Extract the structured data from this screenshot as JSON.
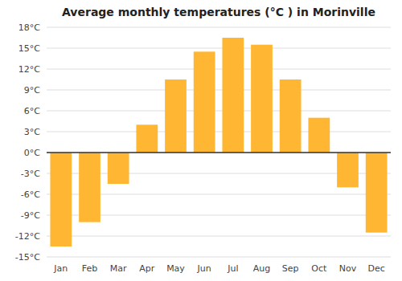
{
  "chart_data": {
    "type": "bar",
    "title": "Average monthly temperatures (°C ) in Morinville",
    "categories": [
      "Jan",
      "Feb",
      "Mar",
      "Apr",
      "May",
      "Jun",
      "Jul",
      "Aug",
      "Sep",
      "Oct",
      "Nov",
      "Dec"
    ],
    "values": [
      -13.5,
      -10.0,
      -4.5,
      4.0,
      10.5,
      14.5,
      16.5,
      15.5,
      10.5,
      5.0,
      -5.0,
      -11.5
    ],
    "color": "#FFB733",
    "ylim": [
      -15,
      18
    ],
    "yticks": [
      {
        "value": -15,
        "label": "-15°C"
      },
      {
        "value": -12,
        "label": "-12°C"
      },
      {
        "value": -9,
        "label": "-9°C"
      },
      {
        "value": -6,
        "label": "-6°C"
      },
      {
        "value": -3,
        "label": "-3°C"
      },
      {
        "value": 0,
        "label": "0°C"
      },
      {
        "value": 3,
        "label": "3°C"
      },
      {
        "value": 6,
        "label": "6°C"
      },
      {
        "value": 9,
        "label": "9°C"
      },
      {
        "value": 12,
        "label": "12°C"
      },
      {
        "value": 15,
        "label": "15°C"
      },
      {
        "value": 18,
        "label": "18°C"
      }
    ],
    "grid": true
  }
}
